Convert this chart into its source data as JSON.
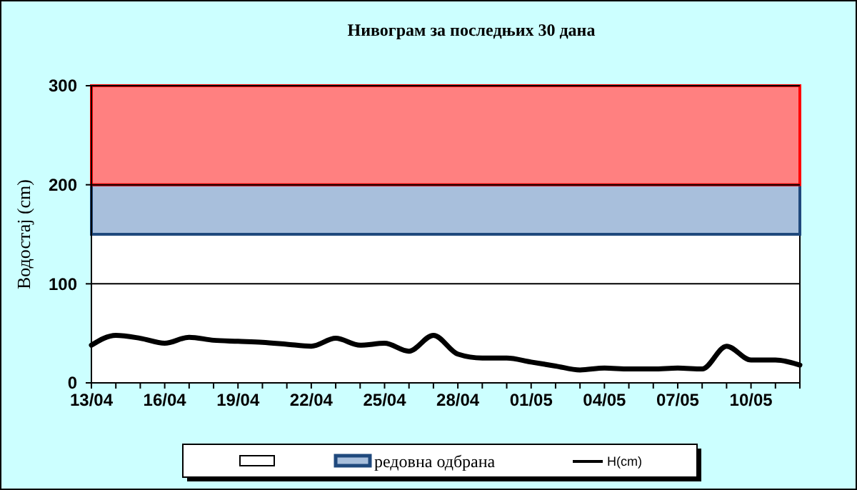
{
  "chart_data": {
    "type": "line",
    "title": "Нивограм за последњих 30 дана",
    "ylabel": "Водостај (cm)",
    "x": [
      "--04-13",
      "--04-14",
      "--04-15",
      "--04-16",
      "--04-17",
      "--04-18",
      "--04-19",
      "--04-20",
      "--04-21",
      "--04-22",
      "--04-23",
      "--04-24",
      "--04-25",
      "--04-26",
      "--04-27",
      "--04-28",
      "--04-29",
      "--04-30",
      "--05-01",
      "--05-02",
      "--05-03",
      "--05-04",
      "--05-05",
      "--05-06",
      "--05-07",
      "--05-08",
      "--05-09",
      "--05-10",
      "--05-11",
      "--05-12"
    ],
    "series": [
      {
        "name": "H(cm)",
        "color": "#000000",
        "values": [
          38,
          48,
          45,
          40,
          46,
          43,
          42,
          41,
          39,
          37,
          45,
          38,
          40,
          32,
          48,
          29,
          25,
          25,
          21,
          17,
          13,
          15,
          14,
          14,
          15,
          14,
          37,
          23,
          23,
          18
        ]
      }
    ],
    "xlim": [
      "--04-13",
      "--05-12"
    ],
    "xticks": [
      {
        "value": "--04-13",
        "label": "13/04"
      },
      {
        "value": "--04-14",
        "label": null
      },
      {
        "value": "--04-15",
        "label": null
      },
      {
        "value": "--04-16",
        "label": "16/04"
      },
      {
        "value": "--04-17",
        "label": null
      },
      {
        "value": "--04-18",
        "label": null
      },
      {
        "value": "--04-19",
        "label": "19/04"
      },
      {
        "value": "--04-20",
        "label": null
      },
      {
        "value": "--04-21",
        "label": null
      },
      {
        "value": "--04-22",
        "label": "22/04"
      },
      {
        "value": "--04-23",
        "label": null
      },
      {
        "value": "--04-24",
        "label": null
      },
      {
        "value": "--04-25",
        "label": "25/04"
      },
      {
        "value": "--04-26",
        "label": null
      },
      {
        "value": "--04-27",
        "label": null
      },
      {
        "value": "--04-28",
        "label": "28/04"
      },
      {
        "value": "--04-29",
        "label": null
      },
      {
        "value": "--04-30",
        "label": null
      },
      {
        "value": "--05-01",
        "label": "01/05"
      },
      {
        "value": "--05-02",
        "label": null
      },
      {
        "value": "--05-03",
        "label": null
      },
      {
        "value": "--05-04",
        "label": "04/05"
      },
      {
        "value": "--05-05",
        "label": null
      },
      {
        "value": "--05-06",
        "label": null
      },
      {
        "value": "--05-07",
        "label": "07/05"
      },
      {
        "value": "--05-08",
        "label": null
      },
      {
        "value": "--05-09",
        "label": null
      },
      {
        "value": "--05-10",
        "label": "10/05"
      },
      {
        "value": "--05-11",
        "label": null
      },
      {
        "value": "--05-12",
        "label": null
      }
    ],
    "ylim": [
      0,
      300
    ],
    "yticks": [
      0,
      100,
      200,
      300
    ],
    "bands": [
      {
        "axis": "y",
        "from": 150,
        "to": 200,
        "label": "редовна одбрана",
        "color": "#a8bfdc"
      },
      {
        "axis": "y",
        "from": 200,
        "to": 300,
        "color": "#ff8080"
      }
    ],
    "grid": "y",
    "legend": "bottom",
    "marker": "none",
    "line_style": "solid"
  }
}
